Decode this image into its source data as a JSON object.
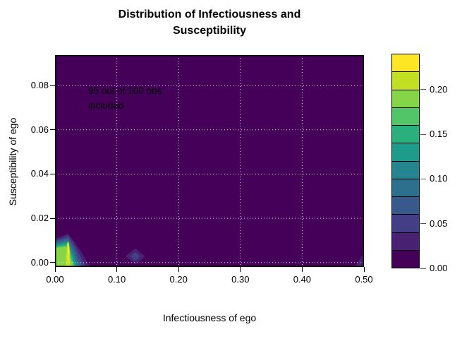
{
  "figure": {
    "title_line1": "Distribution of Infectiousness and",
    "title_line2": "Susceptibility",
    "annotation_line1": "95 out of 100 obs.",
    "annotation_line2": "included",
    "x_axis_label": "Infectiousness of ego",
    "y_axis_label": "Susceptibility of ego"
  },
  "chart_data": {
    "type": "heatmap",
    "subtype": "filled_contour",
    "title": "Distribution of Infectiousness and Susceptibility",
    "xlabel": "Infectiousness of ego",
    "ylabel": "Susceptibility of ego",
    "annotation": "95 out of 100 obs. included",
    "xlim": [
      0,
      0.5
    ],
    "ylim": [
      -0.002,
      0.0938
    ],
    "zlim": [
      0,
      0.24
    ],
    "x_ticks": [
      0,
      0.1,
      0.2,
      0.3,
      0.4,
      0.5
    ],
    "x_tick_labels": [
      "0.00",
      "0.10",
      "0.20",
      "0.30",
      "0.40",
      "0.50"
    ],
    "y_ticks": [
      0,
      0.02,
      0.04,
      0.06,
      0.08
    ],
    "y_tick_labels": [
      "0.00",
      "0.02",
      "0.04",
      "0.06",
      "0.08"
    ],
    "key_ticks": [
      0,
      0.05,
      0.1,
      0.15,
      0.2
    ],
    "key_tick_labels": [
      "0.00",
      "0.05",
      "0.10",
      "0.15",
      "0.20"
    ],
    "levels": [
      0,
      0.02,
      0.04,
      0.06,
      0.08,
      0.1,
      0.12,
      0.14,
      0.16,
      0.18,
      0.2,
      0.22,
      0.24
    ],
    "colors": [
      "#45015a",
      "#482173",
      "#433e85",
      "#38598c",
      "#2d708e",
      "#25858e",
      "#1e9b8a",
      "#2ab07f",
      "#52c569",
      "#86d549",
      "#c2df23",
      "#fde725"
    ],
    "grid": {
      "show": true,
      "style": "dotted",
      "color": "#ffffff"
    },
    "legend_position": "right",
    "density_features": [
      {
        "feature": "main-peak",
        "x_center": 0.022,
        "y_center": 0.006,
        "x_extent": [
          0,
          0.058
        ],
        "y_extent": [
          0,
          0.013
        ],
        "peak_band": "0.22-0.24"
      },
      {
        "feature": "secondary-bump",
        "x_center": 0.13,
        "y_center": 0.003,
        "x_extent": [
          0.114,
          0.146
        ],
        "y_extent": [
          0,
          0.0064
        ],
        "peak_band": "0.04-0.06"
      },
      {
        "feature": "right-edge-bump",
        "x_center": 0.5,
        "y_center": 0.002,
        "x_extent": [
          0.485,
          0.5
        ],
        "y_extent": [
          0,
          0.0044
        ],
        "peak_band": "0.02-0.04"
      }
    ],
    "contour_polygons": [
      {
        "ci": 1,
        "points": [
          [
            0,
            0.0108
          ],
          [
            0.014,
            0.0122
          ],
          [
            0.021,
            0.0131
          ],
          [
            0.0255,
            0.0115
          ],
          [
            0.033,
            0.0088
          ],
          [
            0.044,
            0.0042
          ],
          [
            0.0575,
            -0.002
          ],
          [
            0,
            -0.002
          ]
        ]
      },
      {
        "ci": 2,
        "points": [
          [
            0,
            0.01
          ],
          [
            0.014,
            0.0113
          ],
          [
            0.021,
            0.0122
          ],
          [
            0.025,
            0.0106
          ],
          [
            0.032,
            0.0078
          ],
          [
            0.041,
            0.003
          ],
          [
            0.05,
            -0.002
          ],
          [
            0,
            -0.002
          ]
        ]
      },
      {
        "ci": 3,
        "points": [
          [
            0,
            0.0094
          ],
          [
            0.014,
            0.0106
          ],
          [
            0.021,
            0.0113
          ],
          [
            0.0245,
            0.0098
          ],
          [
            0.031,
            0.0068
          ],
          [
            0.038,
            0.002
          ],
          [
            0.045,
            -0.002
          ],
          [
            0,
            -0.002
          ]
        ]
      },
      {
        "ci": 4,
        "points": [
          [
            0,
            0.0088
          ],
          [
            0.014,
            0.0099
          ],
          [
            0.021,
            0.0105
          ],
          [
            0.024,
            0.009
          ],
          [
            0.03,
            0.0058
          ],
          [
            0.036,
            0.001
          ],
          [
            0.0415,
            -0.002
          ],
          [
            0,
            -0.002
          ]
        ]
      },
      {
        "ci": 5,
        "points": [
          [
            0,
            0.0083
          ],
          [
            0.014,
            0.0093
          ],
          [
            0.0205,
            0.0098
          ],
          [
            0.0235,
            0.0083
          ],
          [
            0.029,
            0.0048
          ],
          [
            0.034,
            0.0002
          ],
          [
            0.0385,
            -0.002
          ],
          [
            0,
            -0.002
          ]
        ]
      },
      {
        "ci": 6,
        "points": [
          [
            0,
            0.0078
          ],
          [
            0.014,
            0.0087
          ],
          [
            0.0205,
            0.0091
          ],
          [
            0.023,
            0.0076
          ],
          [
            0.028,
            0.004
          ],
          [
            0.032,
            -0.0006
          ],
          [
            0.036,
            -0.002
          ],
          [
            0,
            -0.002
          ]
        ]
      },
      {
        "ci": 7,
        "points": [
          [
            0,
            0.0073
          ],
          [
            0.0135,
            0.0081
          ],
          [
            0.02,
            0.0085
          ],
          [
            0.0225,
            0.007
          ],
          [
            0.027,
            0.0032
          ],
          [
            0.0335,
            -0.002
          ],
          [
            0,
            -0.002
          ]
        ]
      },
      {
        "ci": 8,
        "points": [
          [
            0,
            0.0069
          ],
          [
            0.0135,
            0.0075
          ],
          [
            0.02,
            0.0078
          ],
          [
            0.022,
            0.0064
          ],
          [
            0.026,
            0.0024
          ],
          [
            0.0315,
            -0.002
          ],
          [
            0,
            -0.002
          ]
        ]
      },
      {
        "ci": 9,
        "points": [
          [
            0,
            0.0065
          ],
          [
            0.013,
            0.007
          ],
          [
            0.0195,
            0.0072
          ],
          [
            0.0215,
            0.0058
          ],
          [
            0.025,
            0.0016
          ],
          [
            0.0295,
            -0.002
          ],
          [
            0,
            -0.002
          ]
        ]
      },
      {
        "ci": 10,
        "points": [
          [
            0.0175,
            -0.002
          ],
          [
            0.018,
            0.0035
          ],
          [
            0.0198,
            0.0088
          ],
          [
            0.0222,
            0.0096
          ],
          [
            0.024,
            0.0055
          ],
          [
            0.0245,
            0.0005
          ],
          [
            0.024,
            -0.002
          ]
        ]
      },
      {
        "ci": 11,
        "points": [
          [
            0.0203,
            0.0008
          ],
          [
            0.0205,
            0.008
          ],
          [
            0.0218,
            0.0089
          ],
          [
            0.0228,
            0.005
          ],
          [
            0.0225,
            0.0008
          ]
        ]
      },
      {
        "ci": 1,
        "points": [
          [
            0.114,
            0.0028
          ],
          [
            0.13,
            0.0064
          ],
          [
            0.146,
            0.0028
          ],
          [
            0.13,
            -0.0008
          ]
        ]
      },
      {
        "ci": 2,
        "points": [
          [
            0.1215,
            0.0028
          ],
          [
            0.13,
            0.0048
          ],
          [
            0.1385,
            0.0028
          ],
          [
            0.13,
            0.0008
          ]
        ]
      },
      {
        "ci": 1,
        "points": [
          [
            0.485,
            -0.002
          ],
          [
            0.492,
            0.001
          ],
          [
            0.4975,
            0.0032
          ],
          [
            0.5,
            0.0044
          ],
          [
            0.5,
            -0.002
          ]
        ]
      }
    ]
  }
}
